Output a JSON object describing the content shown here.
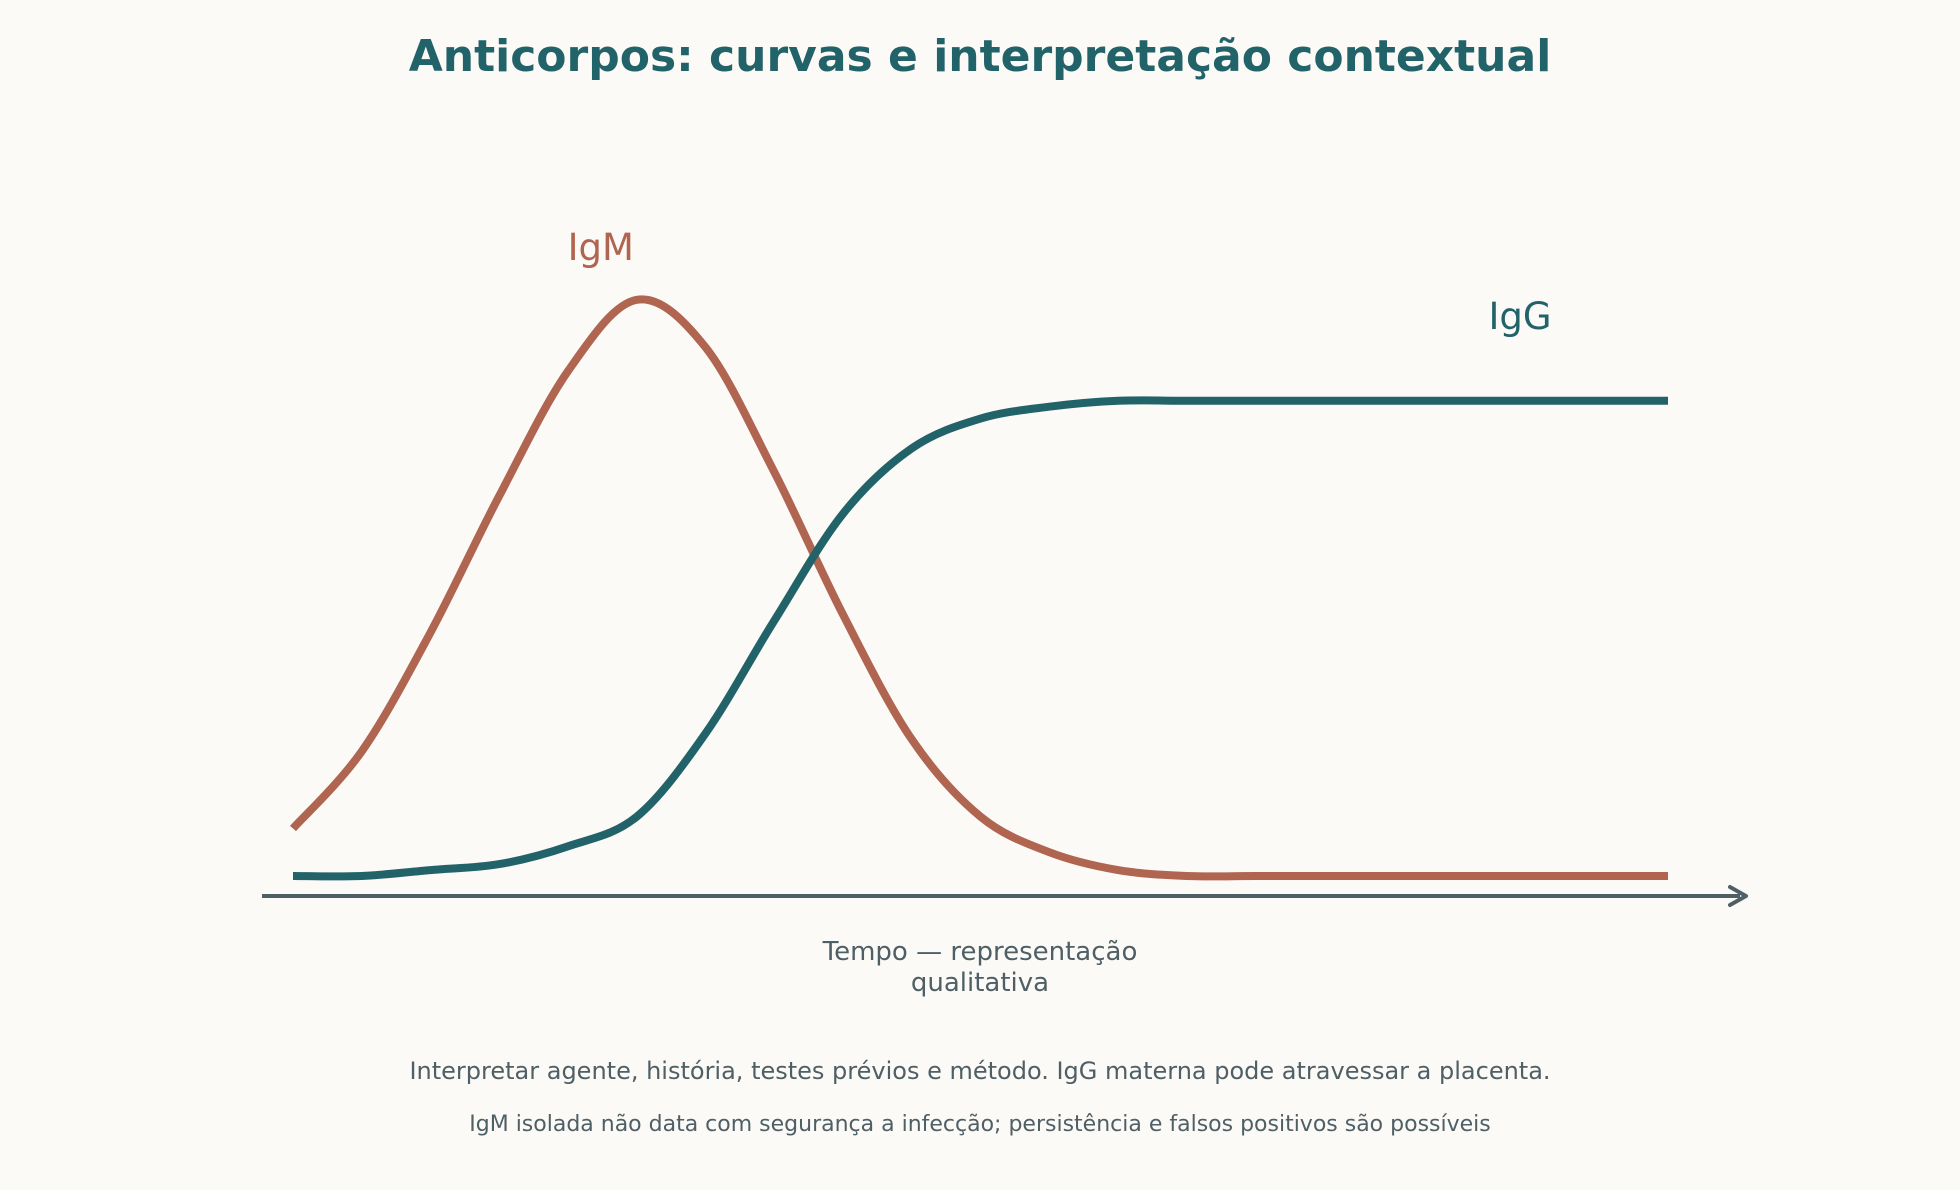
{
  "chart_data": {
    "type": "line",
    "title": "Anticorpos: curvas e interpretação contextual",
    "xlabel_lines": [
      "Tempo — representação",
      "qualitativa"
    ],
    "ylabel": "",
    "x_range": [
      0,
      100
    ],
    "ylim": [
      0,
      100
    ],
    "grid": false,
    "legend": "inline-labels",
    "series": [
      {
        "name": "IgM",
        "color": "#b06550",
        "x": [
          0,
          5,
          10,
          15,
          20,
          25,
          30,
          35,
          40,
          45,
          50,
          55,
          60,
          65,
          70,
          75,
          80,
          85,
          90,
          95,
          100
        ],
        "values": [
          8,
          21,
          41,
          64,
          85,
          97,
          89,
          68,
          44,
          23,
          10,
          4,
          1,
          0,
          0,
          0,
          0,
          0,
          0,
          0,
          0
        ]
      },
      {
        "name": "IgG",
        "color": "#22636a",
        "x": [
          0,
          5,
          10,
          15,
          20,
          25,
          30,
          35,
          40,
          45,
          50,
          55,
          60,
          65,
          70,
          75,
          80,
          85,
          90,
          95,
          100
        ],
        "values": [
          0,
          0,
          1,
          2,
          5,
          10,
          24,
          43,
          61,
          72,
          77,
          79,
          80,
          80,
          80,
          80,
          80,
          80,
          80,
          80,
          80
        ]
      }
    ]
  },
  "colors": {
    "background": "#fcfaf7",
    "axis": "#4f5f66",
    "title": "#22636a"
  },
  "notes": {
    "line1": "Interpretar agente, história, testes prévios e método. IgG materna pode atravessar a placenta.",
    "line2": "IgM isolada não data com segurança a infecção; persistência e falsos positivos são possíveis"
  }
}
